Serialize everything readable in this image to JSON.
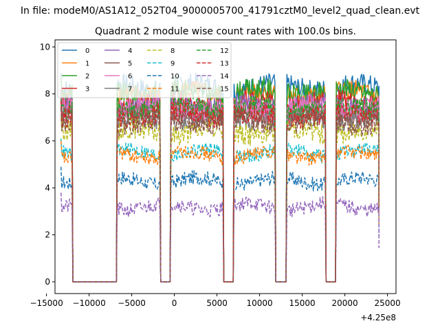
{
  "figure": {
    "suptitle": "In file: modeM0/AS1A12_052T04_9000005700_41791cztM0_level2_quad_clean.evt",
    "title": "Quadrant 2 module wise count rates with 100.0s bins."
  },
  "chart_data": {
    "type": "line",
    "title": "Quadrant 2 module wise count rates with 100.0s bins.",
    "xlabel": "",
    "ylabel": "",
    "x_offset_label": "+4.25e8",
    "xlim": [
      -14000,
      26000
    ],
    "ylim": [
      -0.5,
      10.3
    ],
    "xticks": [
      -15000,
      -10000,
      -5000,
      0,
      5000,
      10000,
      15000,
      20000,
      25000
    ],
    "xtick_labels": [
      "−15000",
      "−10000",
      "−5000",
      "0",
      "5000",
      "10000",
      "15000",
      "20000",
      "25000"
    ],
    "yticks": [
      0,
      2,
      4,
      6,
      8,
      10
    ],
    "ytick_labels": [
      "0",
      "2",
      "4",
      "6",
      "8",
      "10"
    ],
    "grid": false,
    "legend": {
      "placement": "top-left",
      "columns": 4
    },
    "data_segments": [
      [
        -13300,
        -12000
      ],
      [
        -6700,
        -1700
      ],
      [
        -400,
        5700
      ],
      [
        7000,
        11800
      ],
      [
        13200,
        17700
      ],
      [
        19000,
        24000
      ]
    ],
    "series": [
      {
        "name": "0",
        "color": "#1f77b4",
        "dash": "solid",
        "level": 8.3
      },
      {
        "name": "1",
        "color": "#ff7f0e",
        "dash": "solid",
        "level": 8.0
      },
      {
        "name": "2",
        "color": "#2ca02c",
        "dash": "solid",
        "level": 8.1
      },
      {
        "name": "3",
        "color": "#d62728",
        "dash": "solid",
        "level": 7.6
      },
      {
        "name": "4",
        "color": "#9467bd",
        "dash": "solid",
        "level": 7.5
      },
      {
        "name": "5",
        "color": "#8c564b",
        "dash": "solid",
        "level": 7.2
      },
      {
        "name": "6",
        "color": "#e377c2",
        "dash": "solid",
        "level": 7.4
      },
      {
        "name": "7",
        "color": "#7f7f7f",
        "dash": "solid",
        "level": 6.9
      },
      {
        "name": "8",
        "color": "#bcbd22",
        "dash": "dashed",
        "level": 6.4
      },
      {
        "name": "9",
        "color": "#17becf",
        "dash": "dashed",
        "level": 5.5
      },
      {
        "name": "10",
        "color": "#1f77b4",
        "dash": "dashed",
        "level": 4.3
      },
      {
        "name": "11",
        "color": "#ff7f0e",
        "dash": "dashed",
        "level": 5.4
      },
      {
        "name": "12",
        "color": "#2ca02c",
        "dash": "dashed",
        "level": 7.4
      },
      {
        "name": "13",
        "color": "#d62728",
        "dash": "dashed",
        "level": 7.1
      },
      {
        "name": "14",
        "color": "#9467bd",
        "dash": "dashed",
        "level": 3.2
      },
      {
        "name": "15",
        "color": "#8c564b",
        "dash": "dashed",
        "level": 6.8
      }
    ]
  }
}
